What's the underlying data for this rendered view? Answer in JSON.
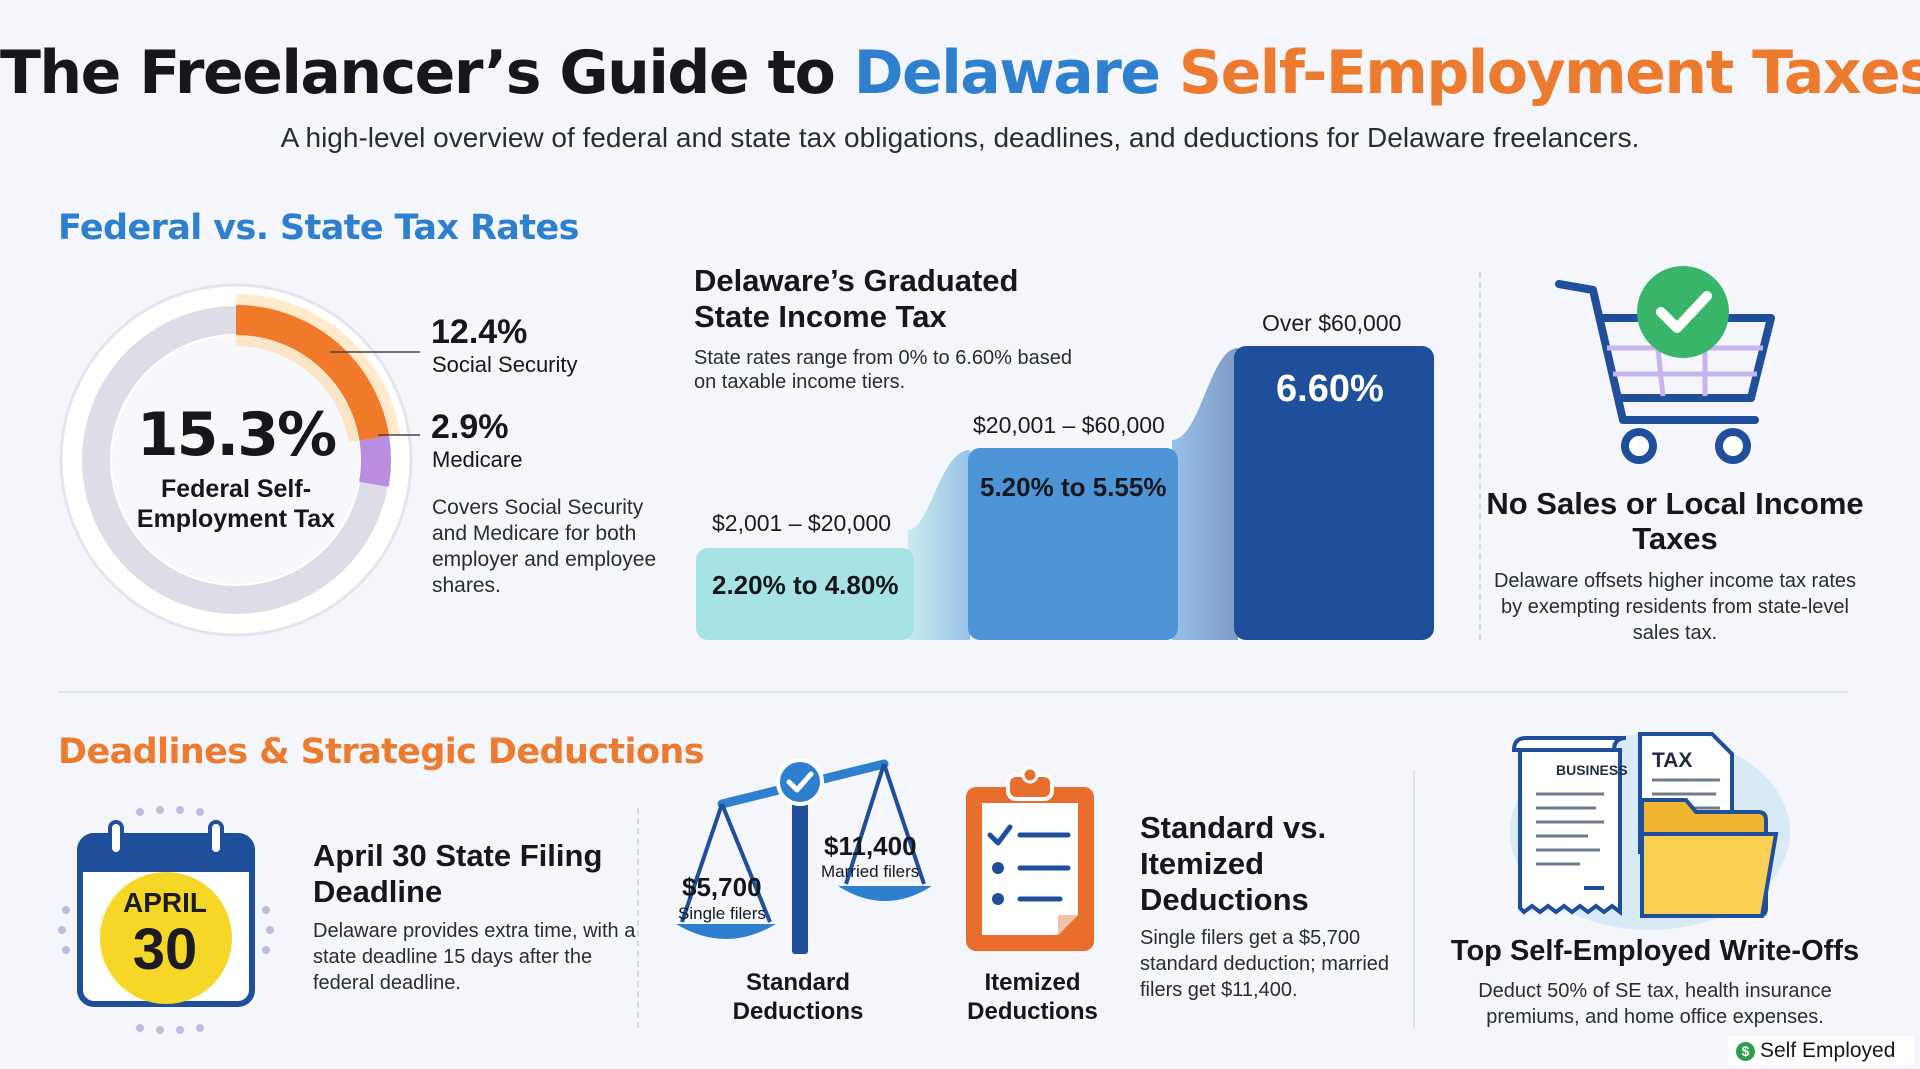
{
  "header": {
    "title_part1": "The Freelancer’s Guide to ",
    "title_part2": "Delaware",
    "title_part3": " Self-Employment Taxes",
    "subtitle": "A high-level overview of federal and state tax obligations, deadlines, and deductions for Delaware freelancers."
  },
  "federal_section": {
    "heading": "Federal vs. State Tax Rates",
    "donut": {
      "total": "15.3%",
      "caption": "Federal Self-Employment Tax",
      "segments": [
        {
          "pct": "12.4%",
          "label": "Social Security",
          "value": 12.4,
          "color": "#f07a2a"
        },
        {
          "pct": "2.9%",
          "label": "Medicare",
          "value": 2.9,
          "color": "#b98ee0"
        }
      ],
      "description": "Covers Social Security and Medicare for both employer and employee shares."
    },
    "graduated": {
      "title": "Delaware’s Graduated State Income Tax",
      "subtitle": "State rates range from 0% to 6.60% based on taxable income tiers.",
      "tiers": [
        {
          "range": "$2,001 – $20,000",
          "rate": "2.20% to 4.80%",
          "color": "#a7e3e4",
          "text_color": "#15171c"
        },
        {
          "range": "$20,001 – $60,000",
          "rate": "5.20% to 5.55%",
          "color": "#4d95d6",
          "text_color": "#15171c"
        },
        {
          "range": "Over $60,000",
          "rate": "6.60%",
          "color": "#1f4e9b",
          "text_color": "#ffffff"
        }
      ]
    },
    "no_sales": {
      "title": "No Sales or Local Income Taxes",
      "description": "Delaware offsets higher income tax rates by exempting residents from state-level sales tax.",
      "icon": "shopping-cart-check-icon"
    }
  },
  "deductions_section": {
    "heading": "Deadlines & Strategic Deductions",
    "calendar": {
      "month": "APRIL",
      "day": "30",
      "title": "April 30 State Filing Deadline",
      "description": "Delaware provides extra time, with a state deadline 15 days after the federal deadline."
    },
    "standard": {
      "single_amount": "$5,700",
      "single_label": "Single filers",
      "married_amount": "$11,400",
      "married_label": "Married filers",
      "caption": "Standard Deductions"
    },
    "itemized": {
      "caption": "Itemized Deductions"
    },
    "standard_vs_itemized": {
      "title": "Standard vs. Itemized Deductions",
      "description": "Single filers get a $5,700 standard deduction; married filers get $11,400."
    },
    "write_offs": {
      "doc1": "BUSINESS",
      "doc2": "TAX",
      "title": "Top Self-Employed Write-Offs",
      "description": "Deduct 50% of SE tax, health insurance premiums, and home office expenses."
    }
  },
  "brand": {
    "coin": "$",
    "name": "Self Employed"
  },
  "colors": {
    "blue": "#2f7fcf",
    "orange": "#ec7a2f",
    "navy": "#1f4e9b"
  }
}
